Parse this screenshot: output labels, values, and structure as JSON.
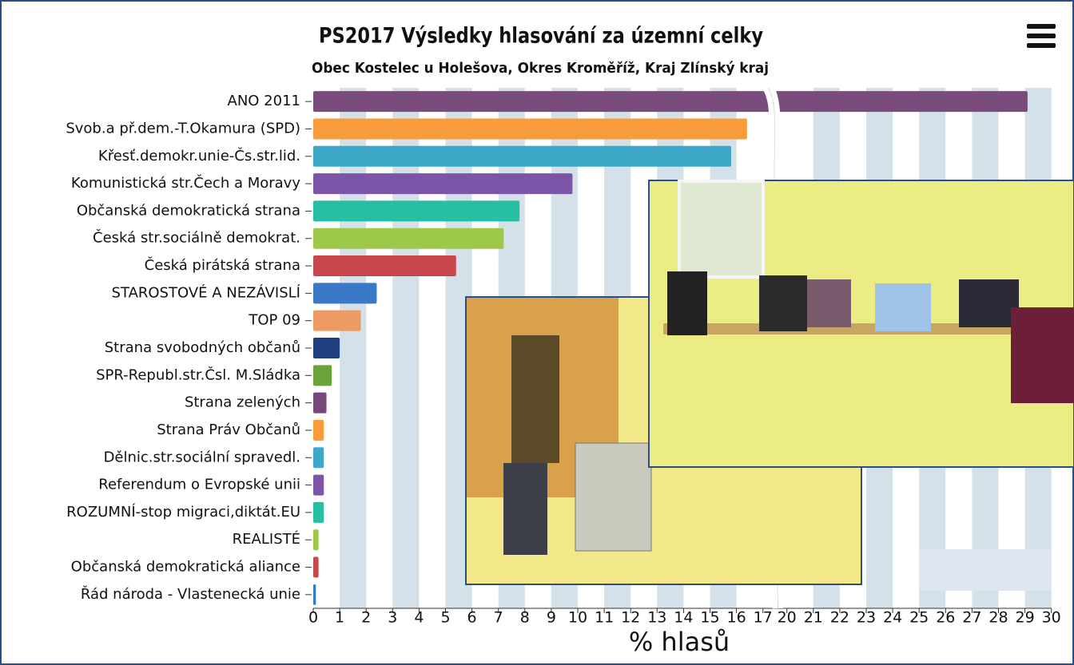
{
  "chart_data": {
    "type": "bar",
    "orientation": "horizontal",
    "title": "PS2017 Výsledky hlasování za územní celky",
    "subtitle": "Obec Kostelec u Holešova, Okres Kroměříž, Kraj Zlínský kraj",
    "xlabel": "% hlasů",
    "categories": [
      "ANO 2011",
      "Svob.a př.dem.-T.Okamura (SPD)",
      "Křesť.demokr.unie-Čs.str.lid.",
      "Komunistická str.Čech a Moravy",
      "Občanská demokratická strana",
      "Česká str.sociálně demokrat.",
      "Česká pirátská strana",
      "STAROSTOVÉ A NEZÁVISLÍ",
      "TOP 09",
      "Strana svobodných občanů",
      "SPR-Republ.str.Čsl. M.Sládka",
      "Strana zelených",
      "Strana Práv Občanů",
      "Dělnic.str.sociální spravedl.",
      "Referendum o Evropské unii",
      "ROZUMNÍ-stop migraci,diktát.EU",
      "REALISTÉ",
      "Občanská demokratická aliance",
      "Řád národa - Vlastenecká unie"
    ],
    "values": [
      29.1,
      16.4,
      15.8,
      9.8,
      7.8,
      7.2,
      5.4,
      2.4,
      1.8,
      1.0,
      0.7,
      0.5,
      0.4,
      0.4,
      0.4,
      0.4,
      0.2,
      0.2,
      0.1
    ],
    "colors": [
      "#7a4c7d",
      "#f79b3b",
      "#3ea8c8",
      "#7d55a8",
      "#26bfa4",
      "#9ec84a",
      "#c9464c",
      "#3a78c8",
      "#ee9a63",
      "#1e3e7e",
      "#6aa23b",
      "#77467b",
      "#f79b3b",
      "#3ea8c8",
      "#7d55a8",
      "#26bfa4",
      "#9ec84a",
      "#c9464c",
      "#3a78c8"
    ],
    "xlim": [
      0,
      30
    ],
    "xbreak": [
      17,
      20
    ],
    "xticks": [
      0,
      1,
      2,
      3,
      4,
      5,
      6,
      7,
      8,
      9,
      10,
      11,
      12,
      13,
      14,
      15,
      16,
      17,
      20,
      21,
      22,
      23,
      24,
      25,
      26,
      27,
      28,
      29,
      30
    ],
    "grid": true
  }
}
